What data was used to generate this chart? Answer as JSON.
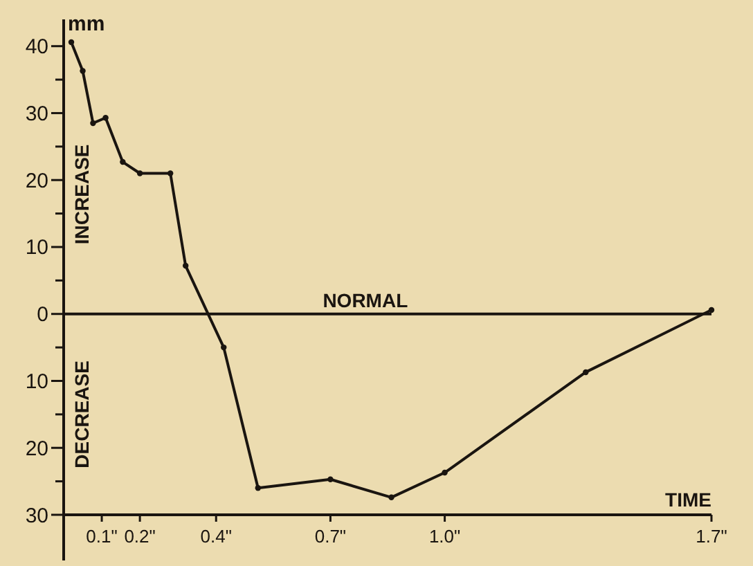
{
  "chart_data": {
    "type": "line",
    "xlabel": "TIME",
    "ylabel": "mm",
    "x": [
      0.02,
      0.05,
      0.077,
      0.11,
      0.155,
      0.2,
      0.28,
      0.32,
      0.42,
      0.51,
      0.7,
      0.86,
      1.0,
      1.37,
      1.7
    ],
    "series": [
      {
        "color": "#1a1510",
        "values": [
          40.6,
          36.3,
          28.5,
          29.3,
          22.7,
          21,
          21,
          7.2,
          -5,
          -26,
          -24.7,
          -27.4,
          -23.7,
          -8.7,
          0.6
        ]
      }
    ],
    "xlim": [
      0,
      1.7
    ],
    "ylim": [
      -30,
      44
    ],
    "xticks": [
      {
        "value": 0.1,
        "label": "0.1\""
      },
      {
        "value": 0.2,
        "label": "0.2\""
      },
      {
        "value": 0.4,
        "label": "0.4\""
      },
      {
        "value": 0.7,
        "label": "0.7\""
      },
      {
        "value": 1.0,
        "label": "1.0\""
      },
      {
        "value": 1.7,
        "label": "1.7\""
      }
    ],
    "yticks": [
      40,
      {
        "value": 35,
        "label": null
      },
      30,
      {
        "value": 25,
        "label": null
      },
      20,
      {
        "value": 15,
        "label": null
      },
      10,
      {
        "value": 5,
        "label": null
      },
      0,
      {
        "value": -5,
        "label": null
      },
      {
        "value": -10,
        "label": "10"
      },
      {
        "value": -15,
        "label": null
      },
      {
        "value": -20,
        "label": "20"
      },
      {
        "value": -25,
        "label": null
      },
      {
        "value": -30,
        "label": "30"
      }
    ],
    "ref_lines": [
      {
        "axis": "y",
        "value": 0,
        "label": "NORMAL"
      }
    ],
    "annotations": [
      "INCREASE",
      "DECREASE"
    ],
    "marker": "circle",
    "line_style": "solid"
  }
}
